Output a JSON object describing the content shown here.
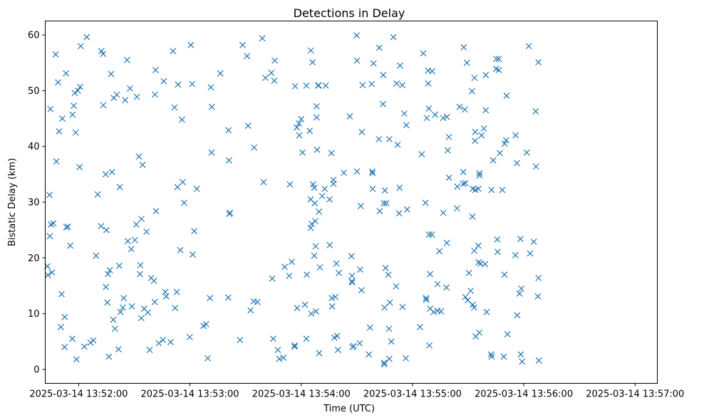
{
  "chart_data": {
    "type": "scatter",
    "title": "Detections in Delay",
    "xlabel": "Time (UTC)",
    "ylabel": "Bistatic Delay (km)",
    "marker": "x",
    "color": "#1f77b4",
    "xlim": [
      -18,
      312
    ],
    "ylim": [
      -2.5,
      62.5
    ],
    "x_unit": "seconds after 2025-03-14 13:52:00",
    "x_ticks": [
      {
        "value": 0,
        "label": "2025-03-14 13:52:00"
      },
      {
        "value": 60,
        "label": "2025-03-14 13:53:00"
      },
      {
        "value": 120,
        "label": "2025-03-14 13:54:00"
      },
      {
        "value": 180,
        "label": "2025-03-14 13:55:00"
      },
      {
        "value": 240,
        "label": "2025-03-14 13:56:00"
      },
      {
        "value": 300,
        "label": "2025-03-14 13:57:00"
      }
    ],
    "y_ticks": [
      {
        "value": 0,
        "label": "0"
      },
      {
        "value": 10,
        "label": "10"
      },
      {
        "value": 20,
        "label": "20"
      },
      {
        "value": 30,
        "label": "30"
      },
      {
        "value": 40,
        "label": "40"
      },
      {
        "value": 50,
        "label": "50"
      },
      {
        "value": 60,
        "label": "60"
      }
    ],
    "points": [
      [
        -16.8,
        18.5
      ],
      [
        -16.6,
        16.9
      ],
      [
        -15.7,
        31.3
      ],
      [
        -15.5,
        23.9
      ],
      [
        -15.2,
        46.7
      ],
      [
        -14.9,
        26.0
      ],
      [
        -14.4,
        17.4
      ],
      [
        -13.6,
        26.2
      ],
      [
        -12.4,
        56.5
      ],
      [
        -12.0,
        37.3
      ],
      [
        -11.1,
        51.5
      ],
      [
        -10.5,
        42.7
      ],
      [
        -9.6,
        7.6
      ],
      [
        -9.2,
        13.5
      ],
      [
        -8.8,
        45.0
      ],
      [
        -7.6,
        4.0
      ],
      [
        -7.5,
        9.4
      ],
      [
        -6.8,
        53.1
      ],
      [
        -6.6,
        25.5
      ],
      [
        -5.8,
        25.6
      ],
      [
        -4.5,
        22.2
      ],
      [
        -3.4,
        5.5
      ],
      [
        -3.3,
        45.7
      ],
      [
        -2.6,
        47.3
      ],
      [
        -2.1,
        49.6
      ],
      [
        -1.6,
        42.5
      ],
      [
        -1.2,
        1.8
      ],
      [
        -0.4,
        50.0
      ],
      [
        0.5,
        36.3
      ],
      [
        0.8,
        50.7
      ],
      [
        1.1,
        58.0
      ],
      [
        3.1,
        4.1
      ],
      [
        4.4,
        59.6
      ],
      [
        6.4,
        4.8
      ],
      [
        7.9,
        5.2
      ],
      [
        9.4,
        20.4
      ],
      [
        10.3,
        31.4
      ],
      [
        12.1,
        25.7
      ],
      [
        12.3,
        57.1
      ],
      [
        13.2,
        56.6
      ],
      [
        13.3,
        47.4
      ],
      [
        14.6,
        35.0
      ],
      [
        14.7,
        14.8
      ],
      [
        15.0,
        25.0
      ],
      [
        15.5,
        12.0
      ],
      [
        15.8,
        17.1
      ],
      [
        16.3,
        2.3
      ],
      [
        16.8,
        17.8
      ],
      [
        17.5,
        53.0
      ],
      [
        18.0,
        35.4
      ],
      [
        18.7,
        8.9
      ],
      [
        19.0,
        48.7
      ],
      [
        19.6,
        7.3
      ],
      [
        20.6,
        49.3
      ],
      [
        21.5,
        3.6
      ],
      [
        21.9,
        18.6
      ],
      [
        22.2,
        32.7
      ],
      [
        22.6,
        10.3
      ],
      [
        23.8,
        11.1
      ],
      [
        24.3,
        12.8
      ],
      [
        25.1,
        48.3
      ],
      [
        26.1,
        55.5
      ],
      [
        26.5,
        23.0
      ],
      [
        27.7,
        50.4
      ],
      [
        28.4,
        21.6
      ],
      [
        28.7,
        11.3
      ],
      [
        30.3,
        23.2
      ],
      [
        31.1,
        26.0
      ],
      [
        31.4,
        48.9
      ],
      [
        32.5,
        38.2
      ],
      [
        33.1,
        17.1
      ],
      [
        33.3,
        18.7
      ],
      [
        33.8,
        9.2
      ],
      [
        33.9,
        27.0
      ],
      [
        34.5,
        36.7
      ],
      [
        35.3,
        10.9
      ],
      [
        36.6,
        24.7
      ],
      [
        37.3,
        10.2
      ],
      [
        38.3,
        3.5
      ],
      [
        39.1,
        16.4
      ],
      [
        40.6,
        15.9
      ],
      [
        41.0,
        12.1
      ],
      [
        41.1,
        49.3
      ],
      [
        41.5,
        53.7
      ],
      [
        41.7,
        28.4
      ],
      [
        43.2,
        4.7
      ],
      [
        45.5,
        5.3
      ],
      [
        45.9,
        51.7
      ],
      [
        46.7,
        13.9
      ],
      [
        47.2,
        13.1
      ],
      [
        49.6,
        4.9
      ],
      [
        50.9,
        57.1
      ],
      [
        51.7,
        47.0
      ],
      [
        52.0,
        11.0
      ],
      [
        52.9,
        13.9
      ],
      [
        53.3,
        32.7
      ],
      [
        53.6,
        51.1
      ],
      [
        54.8,
        21.4
      ],
      [
        55.7,
        44.8
      ],
      [
        56.1,
        33.6
      ],
      [
        56.9,
        29.9
      ],
      [
        59.9,
        5.8
      ],
      [
        60.5,
        58.2
      ],
      [
        61.2,
        51.2
      ],
      [
        61.5,
        20.6
      ],
      [
        62.3,
        24.8
      ],
      [
        63.7,
        32.4
      ],
      [
        67.3,
        7.8
      ],
      [
        68.7,
        8.1
      ],
      [
        69.6,
        2.0
      ],
      [
        70.8,
        12.8
      ],
      [
        71.3,
        50.6
      ],
      [
        71.7,
        38.9
      ],
      [
        71.8,
        47.1
      ],
      [
        76.4,
        53.1
      ],
      [
        80.7,
        12.9
      ],
      [
        80.8,
        42.9
      ],
      [
        81.1,
        37.5
      ],
      [
        81.3,
        27.9
      ],
      [
        81.6,
        28.1
      ],
      [
        87.0,
        5.3
      ],
      [
        88.4,
        58.2
      ],
      [
        90.8,
        56.2
      ],
      [
        91.4,
        43.7
      ],
      [
        92.7,
        10.6
      ],
      [
        94.4,
        12.2
      ],
      [
        94.6,
        39.8
      ],
      [
        96.4,
        12.1
      ],
      [
        99.0,
        59.4
      ],
      [
        99.7,
        33.6
      ],
      [
        100.7,
        52.3
      ],
      [
        103.9,
        53.2
      ],
      [
        104.4,
        16.3
      ],
      [
        104.9,
        5.5
      ],
      [
        105.5,
        51.8
      ],
      [
        105.7,
        55.4
      ],
      [
        107.4,
        3.5
      ],
      [
        108.2,
        1.9
      ],
      [
        110.4,
        2.1
      ],
      [
        111.1,
        18.4
      ],
      [
        113.5,
        16.8
      ],
      [
        113.9,
        33.2
      ],
      [
        114.9,
        19.3
      ],
      [
        116.4,
        4.1
      ],
      [
        116.5,
        4.3
      ],
      [
        116.7,
        50.8
      ],
      [
        117.6,
        43.4
      ],
      [
        117.8,
        11.0
      ],
      [
        118.8,
        44.1
      ],
      [
        119.0,
        42.0
      ],
      [
        120.0,
        44.9
      ],
      [
        120.7,
        38.9
      ],
      [
        122.0,
        11.6
      ],
      [
        122.8,
        5.5
      ],
      [
        122.8,
        50.9
      ],
      [
        123.0,
        17.0
      ],
      [
        124.6,
        42.8
      ],
      [
        125.1,
        25.4
      ],
      [
        125.1,
        30.5
      ],
      [
        125.2,
        57.2
      ],
      [
        125.4,
        10.0
      ],
      [
        125.7,
        26.1
      ],
      [
        126.1,
        55.1
      ],
      [
        126.4,
        33.2
      ],
      [
        127.0,
        20.4
      ],
      [
        127.0,
        32.6
      ],
      [
        127.3,
        29.8
      ],
      [
        127.6,
        26.6
      ],
      [
        127.8,
        22.1
      ],
      [
        128.0,
        10.4
      ],
      [
        128.3,
        45.2
      ],
      [
        128.3,
        47.2
      ],
      [
        128.6,
        39.4
      ],
      [
        129.2,
        50.9
      ],
      [
        129.3,
        51.0
      ],
      [
        129.6,
        28.3
      ],
      [
        129.7,
        2.9
      ],
      [
        130.1,
        18.3
      ],
      [
        131.3,
        31.1
      ],
      [
        132.7,
        32.4
      ],
      [
        133.2,
        50.9
      ],
      [
        135.3,
        30.5
      ],
      [
        135.4,
        22.3
      ],
      [
        136.3,
        38.8
      ],
      [
        136.5,
        12.8
      ],
      [
        136.7,
        11.3
      ],
      [
        137.4,
        33.3
      ],
      [
        137.4,
        34.0
      ],
      [
        137.9,
        5.7
      ],
      [
        138.4,
        13.0
      ],
      [
        139.0,
        19.0
      ],
      [
        139.4,
        6.0
      ],
      [
        139.8,
        3.5
      ],
      [
        140.3,
        17.3
      ],
      [
        143.0,
        35.3
      ],
      [
        146.2,
        45.4
      ],
      [
        147.1,
        20.3
      ],
      [
        147.3,
        15.8
      ],
      [
        147.4,
        16.8
      ],
      [
        147.5,
        15.6
      ],
      [
        147.7,
        4.0
      ],
      [
        148.3,
        4.2
      ],
      [
        149.9,
        59.9
      ],
      [
        150.1,
        55.4
      ],
      [
        150.1,
        35.5
      ],
      [
        151.5,
        4.7
      ],
      [
        151.8,
        17.9
      ],
      [
        152.1,
        29.3
      ],
      [
        152.5,
        14.2
      ],
      [
        152.7,
        42.6
      ],
      [
        153.1,
        51.0
      ],
      [
        156.5,
        2.7
      ],
      [
        157.1,
        7.5
      ],
      [
        158.0,
        51.2
      ],
      [
        158.3,
        35.5
      ],
      [
        158.4,
        35.2
      ],
      [
        158.5,
        32.4
      ],
      [
        159.0,
        54.9
      ],
      [
        161.9,
        41.3
      ],
      [
        162.1,
        57.7
      ],
      [
        162.3,
        28.4
      ],
      [
        164.1,
        47.6
      ],
      [
        164.2,
        52.8
      ],
      [
        164.5,
        29.8
      ],
      [
        164.7,
        1.2
      ],
      [
        164.8,
        0.9
      ],
      [
        164.9,
        11.1
      ],
      [
        165.1,
        32.1
      ],
      [
        165.5,
        18.2
      ],
      [
        165.9,
        29.8
      ],
      [
        167.0,
        17.0
      ],
      [
        167.3,
        7.3
      ],
      [
        167.5,
        41.3
      ],
      [
        167.5,
        1.9
      ],
      [
        167.8,
        12.0
      ],
      [
        168.6,
        5.0
      ],
      [
        169.7,
        59.6
      ],
      [
        171.2,
        14.9
      ],
      [
        171.4,
        51.3
      ],
      [
        172.0,
        40.3
      ],
      [
        172.8,
        28.0
      ],
      [
        173.0,
        32.6
      ],
      [
        173.3,
        54.5
      ],
      [
        174.5,
        51.0
      ],
      [
        174.6,
        11.2
      ],
      [
        175.6,
        45.9
      ],
      [
        176.4,
        2.0
      ],
      [
        176.7,
        43.8
      ],
      [
        177.1,
        28.7
      ],
      [
        184.1,
        7.6
      ],
      [
        185.0,
        38.6
      ],
      [
        185.8,
        56.7
      ],
      [
        187.0,
        29.9
      ],
      [
        187.3,
        12.8
      ],
      [
        187.4,
        12.5
      ],
      [
        187.7,
        45.1
      ],
      [
        188.4,
        53.6
      ],
      [
        188.5,
        51.3
      ],
      [
        188.8,
        46.8
      ],
      [
        188.9,
        24.2
      ],
      [
        189.1,
        4.3
      ],
      [
        189.5,
        17.1
      ],
      [
        189.5,
        10.9
      ],
      [
        190.5,
        24.2
      ],
      [
        190.6,
        53.5
      ],
      [
        191.4,
        10.3
      ],
      [
        192.2,
        45.7
      ],
      [
        193.5,
        15.3
      ],
      [
        193.5,
        10.5
      ],
      [
        194.5,
        21.2
      ],
      [
        195.4,
        10.4
      ],
      [
        196.5,
        45.1
      ],
      [
        196.6,
        28.1
      ],
      [
        198.3,
        14.7
      ],
      [
        198.5,
        45.3
      ],
      [
        198.5,
        22.7
      ],
      [
        199.0,
        39.3
      ],
      [
        199.6,
        41.7
      ],
      [
        199.7,
        34.4
      ],
      [
        204.0,
        28.9
      ],
      [
        204.1,
        32.8
      ],
      [
        205.4,
        47.1
      ],
      [
        207.3,
        33.3
      ],
      [
        207.4,
        35.4
      ],
      [
        207.6,
        57.8
      ],
      [
        208.2,
        46.6
      ],
      [
        208.5,
        13.0
      ],
      [
        208.5,
        33.4
      ],
      [
        209.3,
        55.0
      ],
      [
        209.8,
        12.4
      ],
      [
        210.4,
        17.3
      ],
      [
        211.4,
        14.1
      ],
      [
        212.1,
        49.9
      ],
      [
        212.3,
        27.4
      ],
      [
        212.5,
        32.4
      ],
      [
        212.5,
        11.6
      ],
      [
        213.2,
        11.1
      ],
      [
        213.3,
        21.3
      ],
      [
        213.4,
        52.3
      ],
      [
        213.7,
        41.0
      ],
      [
        213.8,
        42.6
      ],
      [
        213.9,
        32.2
      ],
      [
        214.1,
        5.9
      ],
      [
        215.5,
        22.2
      ],
      [
        215.5,
        32.4
      ],
      [
        215.6,
        19.2
      ],
      [
        216.0,
        6.6
      ],
      [
        216.1,
        35.2
      ],
      [
        216.1,
        34.8
      ],
      [
        216.7,
        19.0
      ],
      [
        217.2,
        42.0
      ],
      [
        218.5,
        43.2
      ],
      [
        219.1,
        18.9
      ],
      [
        219.5,
        52.8
      ],
      [
        219.5,
        46.5
      ],
      [
        220.0,
        10.3
      ],
      [
        222.4,
        2.7
      ],
      [
        222.6,
        32.2
      ],
      [
        222.7,
        2.3
      ],
      [
        223.5,
        37.5
      ],
      [
        225.1,
        53.9
      ],
      [
        225.2,
        55.7
      ],
      [
        225.7,
        23.3
      ],
      [
        225.9,
        21.1
      ],
      [
        226.5,
        53.7
      ],
      [
        226.6,
        55.7
      ],
      [
        227.1,
        38.8
      ],
      [
        228.4,
        32.2
      ],
      [
        229.2,
        2.3
      ],
      [
        229.6,
        17.0
      ],
      [
        229.7,
        40.5
      ],
      [
        230.5,
        41.1
      ],
      [
        230.7,
        49.1
      ],
      [
        231.2,
        6.3
      ],
      [
        235.5,
        20.5
      ],
      [
        235.6,
        42.0
      ],
      [
        236.3,
        37.0
      ],
      [
        236.5,
        9.7
      ],
      [
        237.7,
        13.6
      ],
      [
        238.2,
        23.4
      ],
      [
        238.4,
        2.7
      ],
      [
        238.7,
        14.5
      ],
      [
        239.1,
        1.4
      ],
      [
        241.6,
        38.9
      ],
      [
        242.7,
        58.0
      ],
      [
        243.4,
        20.8
      ],
      [
        245.4,
        22.9
      ],
      [
        246.4,
        46.3
      ],
      [
        246.6,
        36.4
      ],
      [
        247.6,
        13.1
      ],
      [
        247.9,
        16.4
      ],
      [
        247.9,
        55.1
      ],
      [
        248.1,
        1.6
      ]
    ]
  }
}
